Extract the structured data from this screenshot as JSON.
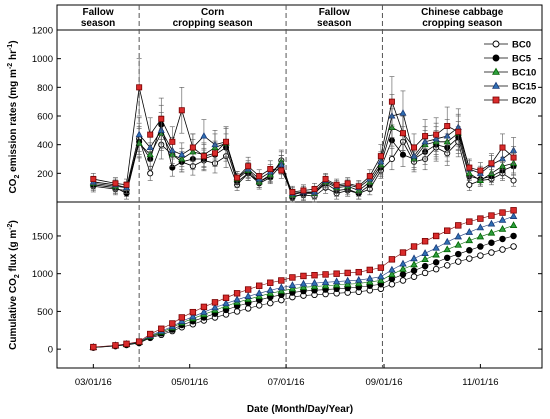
{
  "chart_data": [
    {
      "type": "line",
      "panel": "top",
      "ylabel_main": "CO",
      "ylabel_sub": "2",
      "ylabel_rest": " emission rates (mg m",
      "ylabel_sup1": "-2",
      "ylabel_mid": " hr",
      "ylabel_sup2": "-1",
      "ylabel_end": ")",
      "ylim": [
        0,
        1200
      ],
      "yticks": [
        200,
        400,
        600,
        800,
        1000,
        1200
      ],
      "x": [
        "2016-03-01",
        "2016-03-15",
        "2016-03-22",
        "2016-03-30",
        "2016-04-06",
        "2016-04-13",
        "2016-04-20",
        "2016-04-26",
        "2016-05-03",
        "2016-05-10",
        "2016-05-17",
        "2016-05-24",
        "2016-05-31",
        "2016-06-07",
        "2016-06-14",
        "2016-06-21",
        "2016-06-28",
        "2016-07-05",
        "2016-07-12",
        "2016-07-19",
        "2016-07-26",
        "2016-08-02",
        "2016-08-09",
        "2016-08-16",
        "2016-08-23",
        "2016-08-30",
        "2016-09-06",
        "2016-09-13",
        "2016-09-20",
        "2016-09-27",
        "2016-10-04",
        "2016-10-11",
        "2016-10-18",
        "2016-10-25",
        "2016-11-01",
        "2016-11-08",
        "2016-11-15",
        "2016-11-22"
      ],
      "series": [
        {
          "name": "BC0",
          "marker": "circle-open",
          "color": "#000000",
          "fill": "#ffffff",
          "values": [
            110,
            90,
            80,
            440,
            200,
            400,
            330,
            280,
            250,
            290,
            270,
            320,
            120,
            200,
            140,
            180,
            290,
            40,
            50,
            40,
            100,
            60,
            80,
            60,
            90,
            220,
            300,
            420,
            280,
            300,
            380,
            340,
            420,
            120,
            150,
            160,
            200,
            150
          ]
        },
        {
          "name": "BC5",
          "marker": "circle-filled",
          "color": "#000000",
          "fill": "#000000",
          "values": [
            120,
            100,
            60,
            420,
            300,
            540,
            240,
            280,
            300,
            300,
            330,
            380,
            140,
            200,
            130,
            170,
            260,
            30,
            60,
            60,
            130,
            80,
            90,
            60,
            120,
            240,
            430,
            330,
            300,
            350,
            400,
            380,
            450,
            180,
            160,
            180,
            220,
            250
          ]
        },
        {
          "name": "BC10",
          "marker": "triangle",
          "color": "#006400",
          "fill": "#2e9e3e",
          "values": [
            130,
            110,
            100,
            410,
            330,
            480,
            330,
            300,
            350,
            330,
            380,
            410,
            160,
            220,
            140,
            190,
            280,
            50,
            70,
            60,
            140,
            100,
            110,
            80,
            140,
            260,
            520,
            480,
            300,
            400,
            420,
            420,
            480,
            200,
            150,
            200,
            250,
            270
          ]
        },
        {
          "name": "BC15",
          "marker": "triangle",
          "color": "#1a3a7a",
          "fill": "#2f6fb3",
          "values": [
            140,
            120,
            100,
            470,
            380,
            500,
            360,
            330,
            380,
            460,
            400,
            420,
            170,
            230,
            160,
            210,
            260,
            60,
            70,
            70,
            150,
            110,
            120,
            100,
            160,
            280,
            600,
            620,
            320,
            420,
            440,
            460,
            520,
            230,
            200,
            260,
            300,
            360
          ]
        },
        {
          "name": "BC20",
          "marker": "square",
          "color": "#7a0000",
          "fill": "#d92b2b",
          "values": [
            160,
            130,
            120,
            800,
            470,
            580,
            420,
            640,
            380,
            320,
            340,
            420,
            170,
            250,
            180,
            230,
            220,
            70,
            80,
            90,
            160,
            120,
            130,
            110,
            180,
            320,
            700,
            480,
            380,
            460,
            470,
            530,
            490,
            240,
            220,
            270,
            380,
            310
          ]
        }
      ]
    },
    {
      "type": "line",
      "panel": "bottom",
      "xlabel": "Date (Month/Day/Year)",
      "ylabel_main": "Cumulative CO",
      "ylabel_sub": "2",
      "ylabel_rest": " flux (g m",
      "ylabel_sup1": "-2",
      "ylabel_end": ")",
      "ylim": [
        -250,
        1950
      ],
      "yticks": [
        0,
        500,
        1000,
        1500
      ],
      "xticks": [
        "03/01/16",
        "05/01/16",
        "07/01/16",
        "09/01/16",
        "11/01/16"
      ],
      "x": [
        "2016-03-01",
        "2016-03-15",
        "2016-03-22",
        "2016-03-30",
        "2016-04-06",
        "2016-04-13",
        "2016-04-20",
        "2016-04-26",
        "2016-05-03",
        "2016-05-10",
        "2016-05-17",
        "2016-05-24",
        "2016-05-31",
        "2016-06-07",
        "2016-06-14",
        "2016-06-21",
        "2016-06-28",
        "2016-07-05",
        "2016-07-12",
        "2016-07-19",
        "2016-07-26",
        "2016-08-02",
        "2016-08-09",
        "2016-08-16",
        "2016-08-23",
        "2016-08-30",
        "2016-09-06",
        "2016-09-13",
        "2016-09-20",
        "2016-09-27",
        "2016-10-04",
        "2016-10-11",
        "2016-10-18",
        "2016-10-25",
        "2016-11-01",
        "2016-11-08",
        "2016-11-15",
        "2016-11-22"
      ],
      "series": [
        {
          "name": "BC0",
          "values": [
            20,
            40,
            55,
            80,
            150,
            190,
            240,
            290,
            330,
            380,
            420,
            460,
            500,
            540,
            580,
            610,
            650,
            690,
            710,
            720,
            730,
            740,
            750,
            760,
            780,
            800,
            860,
            910,
            960,
            1010,
            1060,
            1110,
            1160,
            1200,
            1240,
            1280,
            1320,
            1360
          ]
        },
        {
          "name": "BC5",
          "values": [
            22,
            42,
            58,
            85,
            160,
            210,
            260,
            320,
            370,
            420,
            470,
            520,
            570,
            610,
            650,
            690,
            720,
            750,
            770,
            780,
            790,
            800,
            810,
            820,
            840,
            860,
            930,
            990,
            1040,
            1100,
            1150,
            1210,
            1260,
            1310,
            1360,
            1410,
            1460,
            1500
          ]
        },
        {
          "name": "BC10",
          "values": [
            24,
            45,
            62,
            90,
            170,
            225,
            285,
            350,
            405,
            460,
            515,
            570,
            620,
            660,
            700,
            740,
            770,
            800,
            820,
            830,
            840,
            850,
            860,
            870,
            890,
            910,
            990,
            1060,
            1120,
            1190,
            1250,
            1320,
            1380,
            1440,
            1490,
            1540,
            1590,
            1640
          ]
        },
        {
          "name": "BC15",
          "values": [
            25,
            47,
            65,
            95,
            180,
            240,
            300,
            370,
            430,
            490,
            550,
            605,
            655,
            700,
            740,
            780,
            815,
            845,
            865,
            875,
            885,
            895,
            905,
            915,
            935,
            960,
            1050,
            1130,
            1200,
            1270,
            1340,
            1420,
            1490,
            1550,
            1610,
            1660,
            1710,
            1760
          ]
        },
        {
          "name": "BC20",
          "values": [
            27,
            50,
            70,
            100,
            200,
            270,
            340,
            420,
            490,
            560,
            620,
            680,
            740,
            790,
            840,
            880,
            910,
            950,
            970,
            980,
            990,
            1000,
            1010,
            1020,
            1050,
            1080,
            1190,
            1280,
            1360,
            1430,
            1500,
            1570,
            1640,
            1690,
            1730,
            1770,
            1810,
            1840
          ]
        }
      ]
    }
  ],
  "seasons": [
    {
      "line1": "Fallow",
      "line2": "season"
    },
    {
      "line1": "Corn",
      "line2": "cropping season"
    },
    {
      "line1": "Fallow",
      "line2": "season"
    },
    {
      "line1": "Chinese cabbage",
      "line2": "cropping season"
    }
  ],
  "season_boundaries": [
    "2016-03-30",
    "2016-07-01",
    "2016-08-31"
  ],
  "x_range": [
    "2016-02-07",
    "2016-12-10"
  ],
  "xtick_dates": [
    "2016-03-01",
    "2016-05-01",
    "2016-07-01",
    "2016-09-01",
    "2016-11-01"
  ],
  "legend_position": "top-right",
  "grid": false
}
